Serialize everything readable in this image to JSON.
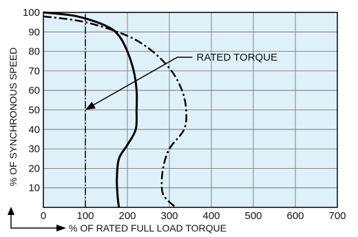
{
  "chart_data": {
    "type": "line",
    "title": "",
    "xlabel": "% OF RATED FULL LOAD TORQUE",
    "ylabel": "% OF SYNCHRONOUS SPEED",
    "xlim": [
      0,
      700
    ],
    "ylim": [
      0,
      100
    ],
    "x_ticks": [
      "0",
      "100",
      "200",
      "300",
      "400",
      "500",
      "600",
      "700"
    ],
    "y_ticks": [
      "10",
      "20",
      "30",
      "40",
      "50",
      "60",
      "70",
      "80",
      "90",
      "100"
    ],
    "grid": true,
    "colors": {
      "plot_background": "#dff1f8",
      "grid": "#666666",
      "curves": "#000000"
    },
    "series": [
      {
        "line_style": "solid",
        "points": [
          [
            0,
            100
          ],
          [
            80,
            98
          ],
          [
            150,
            93
          ],
          [
            180,
            88
          ],
          [
            200,
            80
          ],
          [
            215,
            70
          ],
          [
            222,
            60
          ],
          [
            222,
            50
          ],
          [
            220,
            40
          ],
          [
            200,
            32
          ],
          [
            180,
            25
          ],
          [
            175,
            15
          ],
          [
            177,
            5
          ],
          [
            180,
            0
          ]
        ]
      },
      {
        "line_style": "dash-dot",
        "points": [
          [
            0,
            98
          ],
          [
            100,
            95
          ],
          [
            200,
            88
          ],
          [
            260,
            80
          ],
          [
            305,
            70
          ],
          [
            330,
            60
          ],
          [
            340,
            50
          ],
          [
            335,
            40
          ],
          [
            300,
            30
          ],
          [
            285,
            20
          ],
          [
            282,
            10
          ],
          [
            290,
            5
          ],
          [
            315,
            0
          ]
        ]
      },
      {
        "line_style": "dash-dot-vertical",
        "points": [
          [
            100,
            0
          ],
          [
            100,
            100
          ]
        ]
      }
    ],
    "annotations": [
      {
        "text": "RATED TORQUE",
        "points_to": [
          100,
          50
        ],
        "elbow": [
          355,
          77
        ]
      }
    ]
  }
}
